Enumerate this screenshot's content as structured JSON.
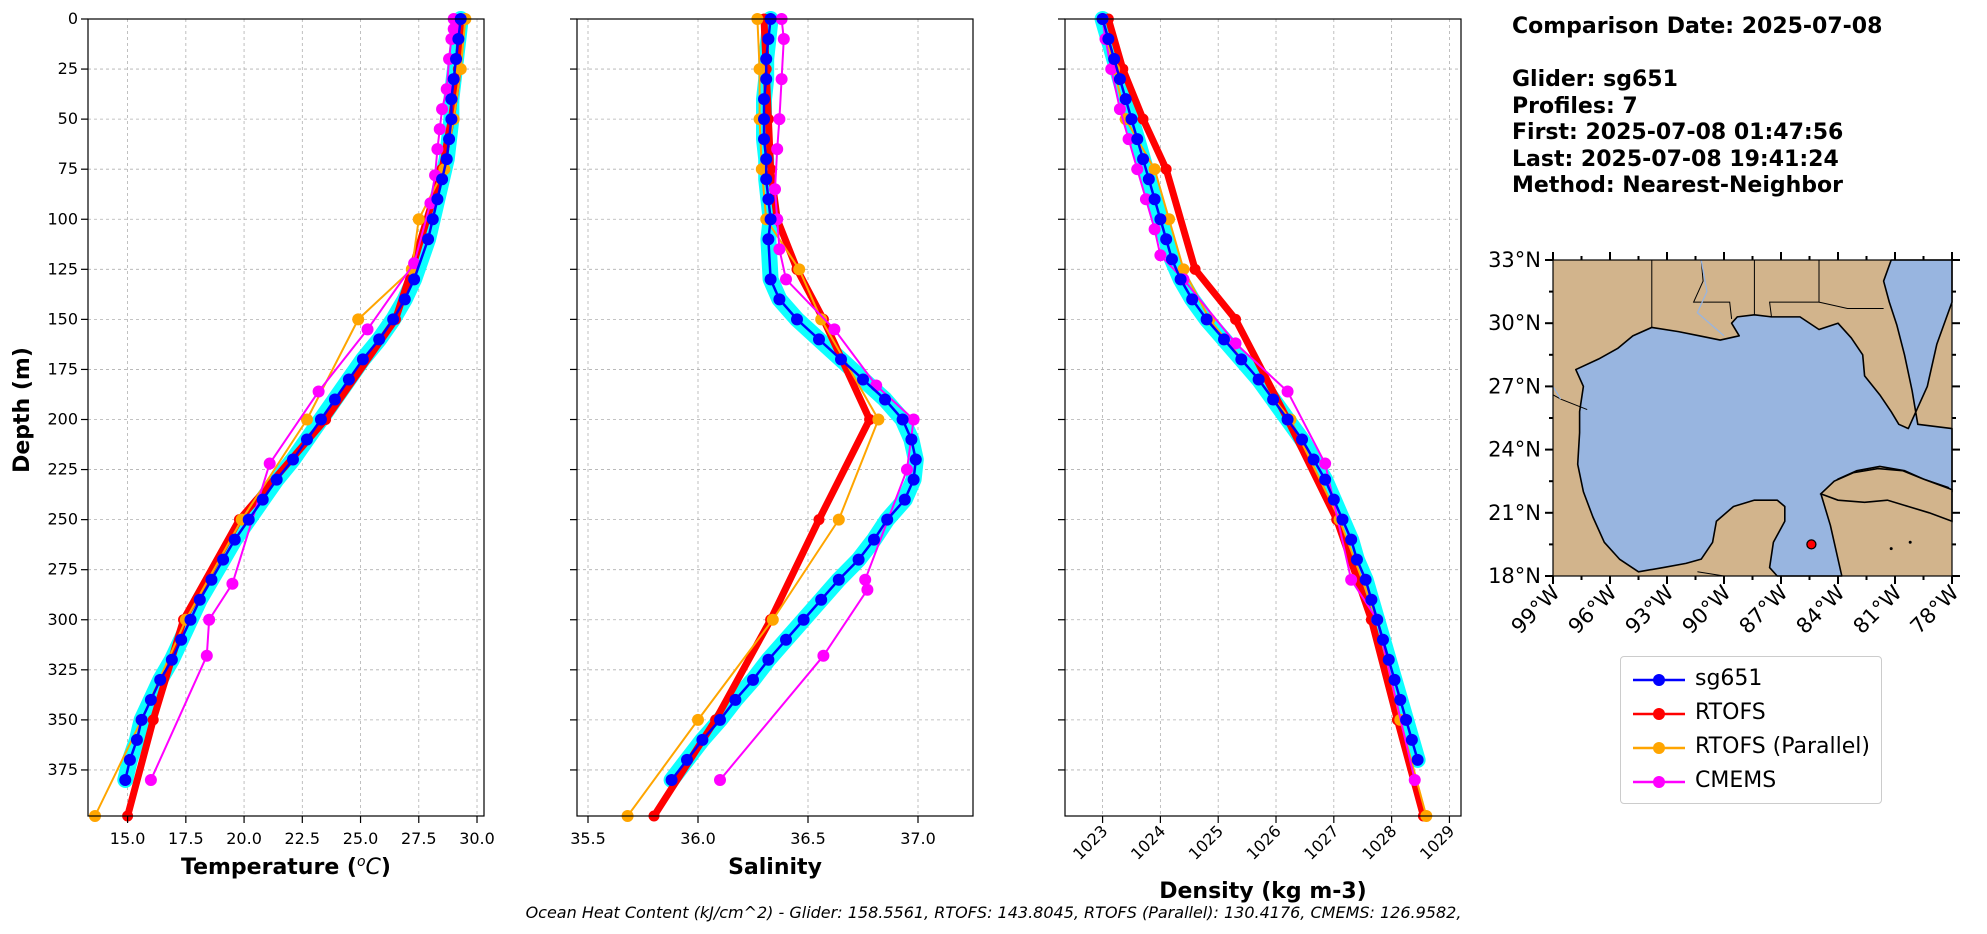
{
  "info": {
    "comparison_date": "Comparison Date: 2025-07-08",
    "glider": "Glider: sg651",
    "profiles": "Profiles: 7",
    "first": "First: 2025-07-08 01:47:56",
    "last": "Last: 2025-07-08 19:41:24",
    "method": "Method: Nearest-Neighbor"
  },
  "footer": "Ocean Heat Content (kJ/cm^2) - Glider: 158.5561,  RTOFS: 143.8045,  RTOFS (Parallel): 130.4176,  CMEMS: 126.9582,",
  "colors": {
    "sg651": "#0000ff",
    "glider_envelope": "#00ffff",
    "RTOFS": "#ff0000",
    "RTOFS (Parallel)": "#ffa500",
    "CMEMS": "#ff00ff",
    "grid": "#b0b0b0",
    "land": "#d2b48c",
    "water": "#98b5e0"
  },
  "chart_data": [
    {
      "type": "line",
      "panel": "temperature",
      "xlabel": "Temperature ($^{o}C$)",
      "ylabel": "Depth (m)",
      "xlim": [
        13.3,
        30.3
      ],
      "ylim": [
        398,
        0
      ],
      "xticks": [
        "15.0",
        "17.5",
        "20.0",
        "22.5",
        "25.0",
        "27.5",
        "30.0"
      ],
      "yticks": [
        "0",
        "25",
        "50",
        "75",
        "100",
        "125",
        "150",
        "175",
        "200",
        "225",
        "250",
        "275",
        "300",
        "325",
        "350",
        "375"
      ],
      "grid": true,
      "series": [
        {
          "name": "sg651",
          "x": [
            29.3,
            29.2,
            29.1,
            29.0,
            28.9,
            28.9,
            28.8,
            28.7,
            28.5,
            28.3,
            28.1,
            27.9,
            27.3,
            26.9,
            26.4,
            25.8,
            25.1,
            24.5,
            23.9,
            23.3,
            22.7,
            22.1,
            21.4,
            20.8,
            20.2,
            19.6,
            19.1,
            18.6,
            18.1,
            17.7,
            17.3,
            16.9,
            16.4,
            16.0,
            15.6,
            15.4,
            15.1,
            14.9
          ],
          "y": [
            0,
            10,
            20,
            30,
            40,
            50,
            60,
            70,
            80,
            90,
            100,
            110,
            130,
            140,
            150,
            160,
            170,
            180,
            190,
            200,
            210,
            220,
            230,
            240,
            250,
            260,
            270,
            280,
            290,
            300,
            310,
            320,
            330,
            340,
            350,
            360,
            370,
            380
          ]
        },
        {
          "name": "RTOFS",
          "x": [
            29.3,
            29.2,
            28.9,
            28.5,
            27.2,
            26.5,
            23.5,
            19.8,
            17.4,
            16.1,
            15.0
          ],
          "y": [
            0,
            25,
            50,
            75,
            125,
            150,
            200,
            250,
            300,
            350,
            398
          ]
        },
        {
          "name": "RTOFS (Parallel)",
          "x": [
            29.5,
            29.3,
            29.0,
            28.6,
            27.5,
            27.2,
            24.9,
            22.7,
            19.9,
            17.5,
            15.6,
            13.6
          ],
          "y": [
            0,
            25,
            50,
            75,
            100,
            125,
            150,
            200,
            250,
            300,
            350,
            398
          ]
        },
        {
          "name": "CMEMS",
          "x": [
            29.0,
            29.0,
            28.9,
            28.8,
            28.7,
            28.5,
            28.4,
            28.3,
            28.2,
            28.0,
            27.3,
            25.3,
            23.2,
            21.1,
            19.5,
            18.5,
            18.4,
            16.0
          ],
          "y": [
            0,
            5,
            10,
            20,
            35,
            45,
            55,
            65,
            78,
            92,
            122,
            155,
            186,
            222,
            282,
            300,
            318,
            380
          ]
        }
      ]
    },
    {
      "type": "line",
      "panel": "salinity",
      "xlabel": "Salinity",
      "xlim": [
        35.45,
        37.25
      ],
      "ylim": [
        398,
        0
      ],
      "xticks": [
        "35.5",
        "36.0",
        "36.5",
        "37.0"
      ],
      "grid": true,
      "series": [
        {
          "name": "sg651",
          "x": [
            36.33,
            36.32,
            36.31,
            36.31,
            36.3,
            36.3,
            36.3,
            36.31,
            36.31,
            36.32,
            36.33,
            36.32,
            36.33,
            36.37,
            36.45,
            36.55,
            36.65,
            36.75,
            36.85,
            36.93,
            36.97,
            36.99,
            36.98,
            36.94,
            36.86,
            36.8,
            36.73,
            36.64,
            36.56,
            36.48,
            36.4,
            36.32,
            36.25,
            36.17,
            36.1,
            36.02,
            35.95,
            35.88
          ],
          "y": [
            0,
            10,
            20,
            30,
            40,
            50,
            60,
            70,
            80,
            90,
            100,
            110,
            130,
            140,
            150,
            160,
            170,
            180,
            190,
            200,
            210,
            220,
            230,
            240,
            250,
            260,
            270,
            280,
            290,
            300,
            310,
            320,
            330,
            340,
            350,
            360,
            370,
            380
          ]
        },
        {
          "name": "RTOFS",
          "x": [
            36.3,
            36.31,
            36.32,
            36.33,
            36.36,
            36.45,
            36.57,
            36.78,
            36.55,
            36.33,
            36.08,
            35.8
          ],
          "y": [
            0,
            25,
            50,
            75,
            100,
            125,
            150,
            200,
            250,
            300,
            350,
            398
          ]
        },
        {
          "name": "RTOFS (Parallel)",
          "x": [
            36.27,
            36.28,
            36.28,
            36.29,
            36.31,
            36.46,
            36.56,
            36.82,
            36.64,
            36.34,
            36.0,
            35.68
          ],
          "y": [
            0,
            25,
            50,
            75,
            100,
            125,
            150,
            200,
            250,
            300,
            350,
            398
          ]
        },
        {
          "name": "CMEMS",
          "x": [
            36.38,
            36.39,
            36.38,
            36.37,
            36.36,
            36.35,
            36.36,
            36.37,
            36.4,
            36.62,
            36.81,
            36.98,
            36.95,
            36.76,
            36.77,
            36.57,
            36.1
          ],
          "y": [
            0,
            10,
            30,
            50,
            65,
            85,
            100,
            115,
            130,
            155,
            183,
            200,
            225,
            280,
            285,
            318,
            380
          ]
        }
      ]
    },
    {
      "type": "line",
      "panel": "density",
      "xlabel": "Density (kg m-3)",
      "xlim": [
        1022.35,
        1029.2
      ],
      "ylim": [
        398,
        0
      ],
      "xticks": [
        "1023",
        "1024",
        "1025",
        "1026",
        "1027",
        "1028",
        "1029"
      ],
      "grid": true,
      "series": [
        {
          "name": "sg651",
          "x": [
            1023.0,
            1023.1,
            1023.2,
            1023.3,
            1023.4,
            1023.5,
            1023.6,
            1023.7,
            1023.8,
            1023.9,
            1024.0,
            1024.1,
            1024.2,
            1024.35,
            1024.55,
            1024.8,
            1025.1,
            1025.4,
            1025.7,
            1025.95,
            1026.2,
            1026.45,
            1026.65,
            1026.85,
            1027.0,
            1027.15,
            1027.3,
            1027.4,
            1027.55,
            1027.65,
            1027.75,
            1027.85,
            1027.95,
            1028.05,
            1028.15,
            1028.25,
            1028.35,
            1028.45
          ],
          "y": [
            0,
            10,
            20,
            30,
            40,
            50,
            60,
            70,
            80,
            90,
            100,
            110,
            120,
            130,
            140,
            150,
            160,
            170,
            180,
            190,
            200,
            210,
            220,
            230,
            240,
            250,
            260,
            270,
            280,
            290,
            300,
            310,
            320,
            330,
            340,
            350,
            360,
            370
          ]
        },
        {
          "name": "RTOFS",
          "x": [
            1023.1,
            1023.35,
            1023.7,
            1024.1,
            1024.6,
            1025.3,
            1026.2,
            1027.05,
            1027.65,
            1028.1,
            1028.55
          ],
          "y": [
            0,
            25,
            50,
            75,
            125,
            150,
            200,
            250,
            300,
            350,
            398
          ]
        },
        {
          "name": "RTOFS (Parallel)",
          "x": [
            1023.0,
            1023.2,
            1023.4,
            1023.9,
            1024.15,
            1024.4,
            1024.85,
            1026.25,
            1027.1,
            1027.75,
            1028.15,
            1028.6
          ],
          "y": [
            0,
            25,
            50,
            75,
            100,
            125,
            150,
            200,
            250,
            300,
            350,
            398
          ]
        },
        {
          "name": "CMEMS",
          "x": [
            1023.0,
            1023.05,
            1023.15,
            1023.3,
            1023.45,
            1023.6,
            1023.75,
            1023.9,
            1024.0,
            1024.4,
            1025.3,
            1026.2,
            1026.85,
            1027.3,
            1027.75,
            1028.4
          ],
          "y": [
            0,
            10,
            25,
            45,
            60,
            75,
            90,
            105,
            118,
            130,
            162,
            186,
            222,
            280,
            300,
            380
          ]
        }
      ]
    }
  ],
  "map": {
    "lat_ticks": [
      "33°N",
      "30°N",
      "27°N",
      "24°N",
      "21°N",
      "18°N"
    ],
    "lon_ticks": [
      "99°W",
      "96°W",
      "93°W",
      "90°W",
      "87°W",
      "84°W",
      "81°W",
      "78°W"
    ],
    "lat_range": [
      18,
      33
    ],
    "lon_range": [
      -99,
      -78
    ],
    "glider_position": {
      "lon": -85.4,
      "lat": 19.5
    }
  },
  "legend": [
    {
      "label": "sg651",
      "color": "#0000ff"
    },
    {
      "label": "RTOFS",
      "color": "#ff0000"
    },
    {
      "label": "RTOFS (Parallel)",
      "color": "#ffa500"
    },
    {
      "label": "CMEMS",
      "color": "#ff00ff"
    }
  ]
}
